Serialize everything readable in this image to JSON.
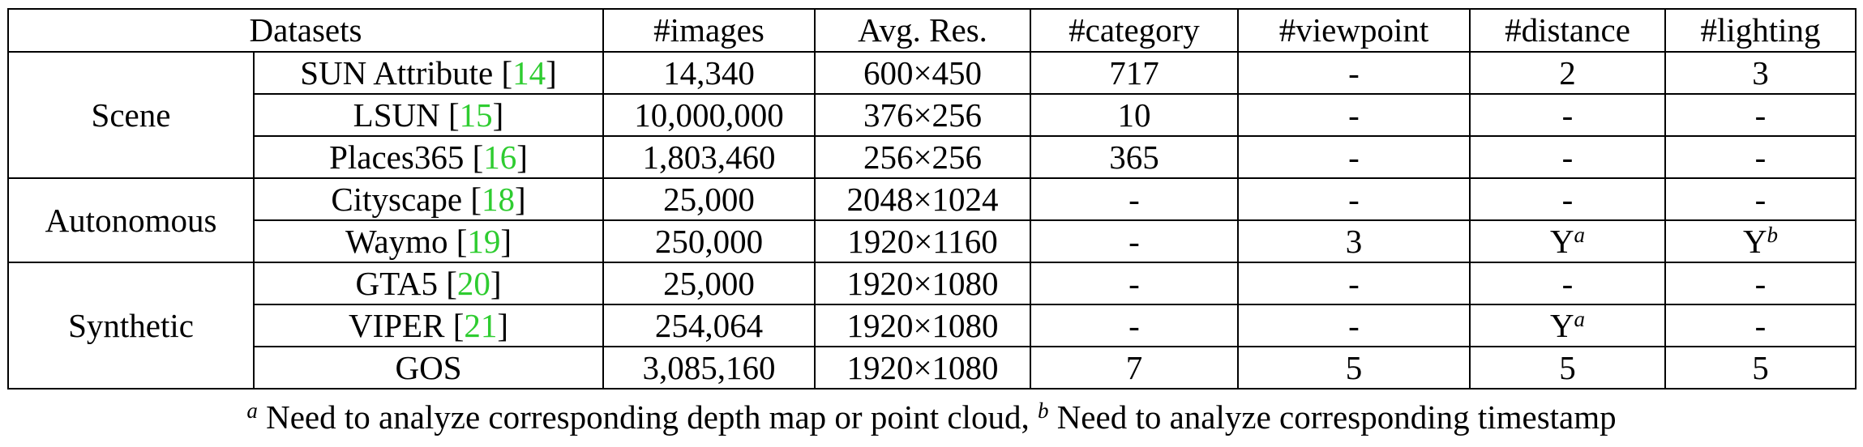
{
  "header": {
    "datasets": "Datasets",
    "images": "#images",
    "avg_res": "Avg. Res.",
    "category": "#category",
    "viewpoint": "#viewpoint",
    "distance": "#distance",
    "lighting": "#lighting"
  },
  "groups": {
    "scene": "Scene",
    "autonomous": "Autonomous",
    "synthetic": "Synthetic"
  },
  "rows": [
    {
      "name": "SUN Attribute ",
      "cite": "14",
      "images": "14,340",
      "res": "600×450",
      "category": "717",
      "viewpoint": "-",
      "distance": "2",
      "lighting": "3"
    },
    {
      "name": "LSUN ",
      "cite": "15",
      "images": "10,000,000",
      "res": "376×256",
      "category": "10",
      "viewpoint": "-",
      "distance": "-",
      "lighting": "-"
    },
    {
      "name": "Places365 ",
      "cite": "16",
      "images": "1,803,460",
      "res": "256×256",
      "category": "365",
      "viewpoint": "-",
      "distance": "-",
      "lighting": "-"
    },
    {
      "name": "Cityscape ",
      "cite": "18",
      "images": "25,000",
      "res": "2048×1024",
      "category": "-",
      "viewpoint": "-",
      "distance": "-",
      "lighting": "-"
    },
    {
      "name": "Waymo ",
      "cite": "19",
      "images": "250,000",
      "res": "1920×1160",
      "category": "-",
      "viewpoint": "3",
      "distance": "Y",
      "distance_sup": "a",
      "lighting": "Y",
      "lighting_sup": "b"
    },
    {
      "name": "GTA5 ",
      "cite": "20",
      "images": "25,000",
      "res": "1920×1080",
      "category": "-",
      "viewpoint": "-",
      "distance": "-",
      "lighting": "-"
    },
    {
      "name": "VIPER ",
      "cite": "21",
      "images": "254,064",
      "res": "1920×1080",
      "category": "-",
      "viewpoint": "-",
      "distance": "Y",
      "distance_sup": "a",
      "lighting": "-"
    },
    {
      "name": "GOS",
      "images": "3,085,160",
      "res": "1920×1080",
      "category": "7",
      "viewpoint": "5",
      "distance": "5",
      "lighting": "5"
    }
  ],
  "footnote": {
    "a_mark": "a",
    "a_text": " Need to analyze corresponding depth map or point cloud, ",
    "b_mark": "b",
    "b_text": " Need to analyze corresponding timestamp"
  }
}
